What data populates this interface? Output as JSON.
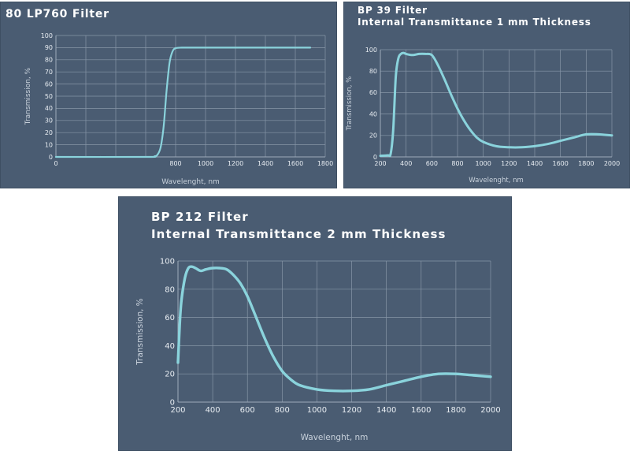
{
  "colors": {
    "panel_background": "#4a5c72",
    "curve": "#8ad3dc",
    "grid": "#8796a8",
    "text": "#ffffff"
  },
  "chart_data": [
    {
      "type": "line",
      "title": "80 LP760 Filter",
      "subtitle": "",
      "xlabel": "Wavelenght, nm",
      "ylabel": "Transmission, %",
      "xlim": [
        0,
        1800
      ],
      "ylim": [
        0,
        100
      ],
      "x_ticks": [
        0,
        200,
        400,
        600,
        800,
        1000,
        1200,
        1400,
        1600,
        1800
      ],
      "x_tick_labels": [
        "0",
        "",
        "",
        "",
        "800",
        "1000",
        "1200",
        "1400",
        "1600",
        "1800"
      ],
      "y_ticks": [
        0,
        10,
        20,
        30,
        40,
        50,
        60,
        70,
        80,
        90,
        100
      ],
      "y_tick_labels": [
        "0",
        "10",
        "20",
        "30",
        "40",
        "50",
        "60",
        "70",
        "80",
        "90",
        "100"
      ],
      "grid": true,
      "series": [
        {
          "x": [
            0,
            600,
            660,
            680,
            700,
            720,
            740,
            760,
            780,
            800,
            840,
            900,
            1000,
            1200,
            1400,
            1600,
            1700
          ],
          "y": [
            0,
            0,
            0.5,
            2,
            8,
            25,
            55,
            78,
            87,
            89.5,
            90,
            90,
            90,
            90,
            90,
            90,
            90
          ]
        }
      ]
    },
    {
      "type": "line",
      "title": "BP 39 Filter",
      "subtitle": "Internal Transmittance 1 mm Thickness",
      "xlabel": "Wavelenght, nm",
      "ylabel": "Transmission, %",
      "xlim": [
        200,
        2000
      ],
      "ylim": [
        0,
        100
      ],
      "x_ticks": [
        200,
        400,
        600,
        800,
        1000,
        1200,
        1400,
        1600,
        1800,
        2000
      ],
      "x_tick_labels": [
        "200",
        "400",
        "600",
        "800",
        "1000",
        "1200",
        "1400",
        "1600",
        "1800",
        "2000"
      ],
      "y_ticks": [
        0,
        20,
        40,
        60,
        80,
        100
      ],
      "y_tick_labels": [
        "0",
        "20",
        "40",
        "60",
        "80",
        "100"
      ],
      "grid": true,
      "series": [
        {
          "x": [
            200,
            260,
            280,
            300,
            320,
            340,
            360,
            380,
            400,
            450,
            500,
            550,
            600,
            650,
            700,
            750,
            800,
            850,
            900,
            950,
            1000,
            1100,
            1200,
            1300,
            1400,
            1500,
            1600,
            1700,
            1800,
            1900,
            2000
          ],
          "y": [
            1,
            1.5,
            3,
            25,
            75,
            92,
            96,
            97,
            96,
            95,
            96,
            96,
            95,
            85,
            72,
            58,
            45,
            34,
            25,
            18,
            14,
            10,
            9,
            9,
            10,
            12,
            15,
            18,
            21,
            21,
            20
          ]
        }
      ]
    },
    {
      "type": "line",
      "title": "BP 212 Filter",
      "subtitle": "Internal Transmittance 2 mm Thickness",
      "xlabel": "Wavelenght, nm",
      "ylabel": "Transmission, %",
      "xlim": [
        200,
        2000
      ],
      "ylim": [
        0,
        100
      ],
      "x_ticks": [
        200,
        400,
        600,
        800,
        1000,
        1200,
        1400,
        1600,
        1800,
        2000
      ],
      "x_tick_labels": [
        "200",
        "400",
        "600",
        "800",
        "1000",
        "1200",
        "1400",
        "1600",
        "1800",
        "2000"
      ],
      "y_ticks": [
        0,
        20,
        40,
        60,
        80,
        100
      ],
      "y_tick_labels": [
        "0",
        "20",
        "40",
        "60",
        "80",
        "100"
      ],
      "grid": true,
      "series": [
        {
          "x": [
            200,
            210,
            220,
            240,
            260,
            280,
            300,
            330,
            360,
            400,
            440,
            480,
            520,
            560,
            600,
            650,
            700,
            750,
            800,
            850,
            900,
            1000,
            1100,
            1200,
            1300,
            1400,
            1500,
            1600,
            1700,
            1800,
            1900,
            2000
          ],
          "y": [
            28,
            55,
            72,
            88,
            95,
            96,
            95,
            93,
            94,
            95,
            95,
            94,
            90,
            84,
            75,
            60,
            45,
            32,
            22,
            16,
            12,
            9,
            8,
            8,
            9,
            12,
            15,
            18,
            20,
            20,
            19,
            18
          ]
        }
      ]
    }
  ]
}
